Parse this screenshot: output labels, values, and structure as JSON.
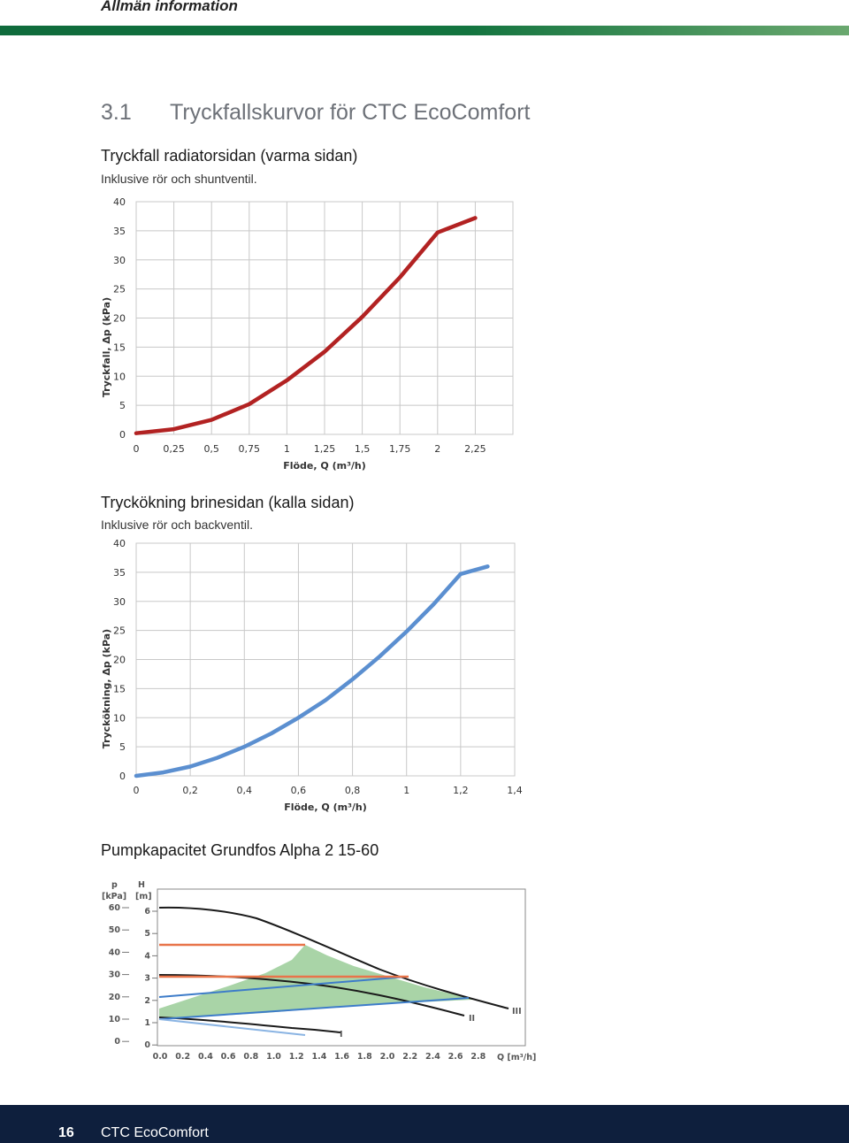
{
  "header": {
    "title": "Allmän information"
  },
  "section": {
    "number": "3.1",
    "title": "Tryckfallskurvor för CTC EcoComfort"
  },
  "chart1": {
    "heading": "Tryckfall radiatorsidan (varma sidan)",
    "note": "Inklusive rör och shuntventil."
  },
  "chart2": {
    "heading": "Tryckökning brinesidan (kalla sidan)",
    "note": "Inklusive rör och backventil."
  },
  "chart3": {
    "heading": "Pumpkapacitet Grundfos Alpha 2 15-60",
    "p_label": "p",
    "p_unit": "[kPa]",
    "h_label": "H",
    "h_unit": "[m]",
    "x_unit": "Q [m³/h]",
    "p_ticks": [
      "60",
      "50",
      "40",
      "30",
      "20",
      "10",
      "0"
    ],
    "h_ticks": [
      "6",
      "5",
      "4",
      "3",
      "2",
      "1",
      "0"
    ],
    "x_ticks": [
      "0.0",
      "0.2",
      "0.4",
      "0.6",
      "0.8",
      "1.0",
      "1.2",
      "1.4",
      "1.6",
      "1.8",
      "2.0",
      "2.2",
      "2.4",
      "2.6",
      "2.8"
    ],
    "curve_labels": [
      "I",
      "II",
      "III"
    ]
  },
  "chart_data": [
    {
      "type": "line",
      "title": "",
      "xlabel": "Flöde, Q (m³/h)",
      "ylabel": "Tryckfall, Δp (kPa)",
      "xlim": [
        0,
        2.5
      ],
      "ylim": [
        0,
        40
      ],
      "x_tick_labels": [
        "0",
        "0,25",
        "0,5",
        "0,75",
        "1",
        "1,25",
        "1,5",
        "1,75",
        "2",
        "2,25"
      ],
      "y_tick_labels": [
        "0",
        "5",
        "10",
        "15",
        "20",
        "25",
        "30",
        "35",
        "40"
      ],
      "grid": true,
      "color": "#b22222",
      "series": [
        {
          "x": [
            0,
            0.25,
            0.5,
            0.75,
            1.0,
            1.25,
            1.5,
            1.75,
            2.0,
            2.25
          ],
          "values": [
            0.2,
            0.9,
            2.5,
            5.2,
            9.3,
            14.2,
            20.2,
            27.0,
            34.7,
            37.2
          ]
        }
      ]
    },
    {
      "type": "line",
      "title": "",
      "xlabel": "Flöde, Q (m³/h)",
      "ylabel": "Tryckökning, Δp (kPa)",
      "xlim": [
        0,
        1.4
      ],
      "ylim": [
        0,
        40
      ],
      "x_tick_labels": [
        "0",
        "0,2",
        "0,4",
        "0,6",
        "0,8",
        "1",
        "1,2",
        "1,4"
      ],
      "y_tick_labels": [
        "0",
        "5",
        "10",
        "15",
        "20",
        "25",
        "30",
        "35",
        "40"
      ],
      "grid": true,
      "color": "#5b8fd0",
      "series": [
        {
          "x": [
            0,
            0.1,
            0.2,
            0.3,
            0.4,
            0.5,
            0.6,
            0.7,
            0.8,
            0.9,
            1.0,
            1.1,
            1.2,
            1.3
          ],
          "values": [
            0,
            0.6,
            1.6,
            3.1,
            5.0,
            7.3,
            10.0,
            13.0,
            16.6,
            20.5,
            24.8,
            29.5,
            34.7,
            36.0
          ]
        }
      ]
    }
  ],
  "footer": {
    "page": "16",
    "brand": "CTC EcoComfort"
  }
}
